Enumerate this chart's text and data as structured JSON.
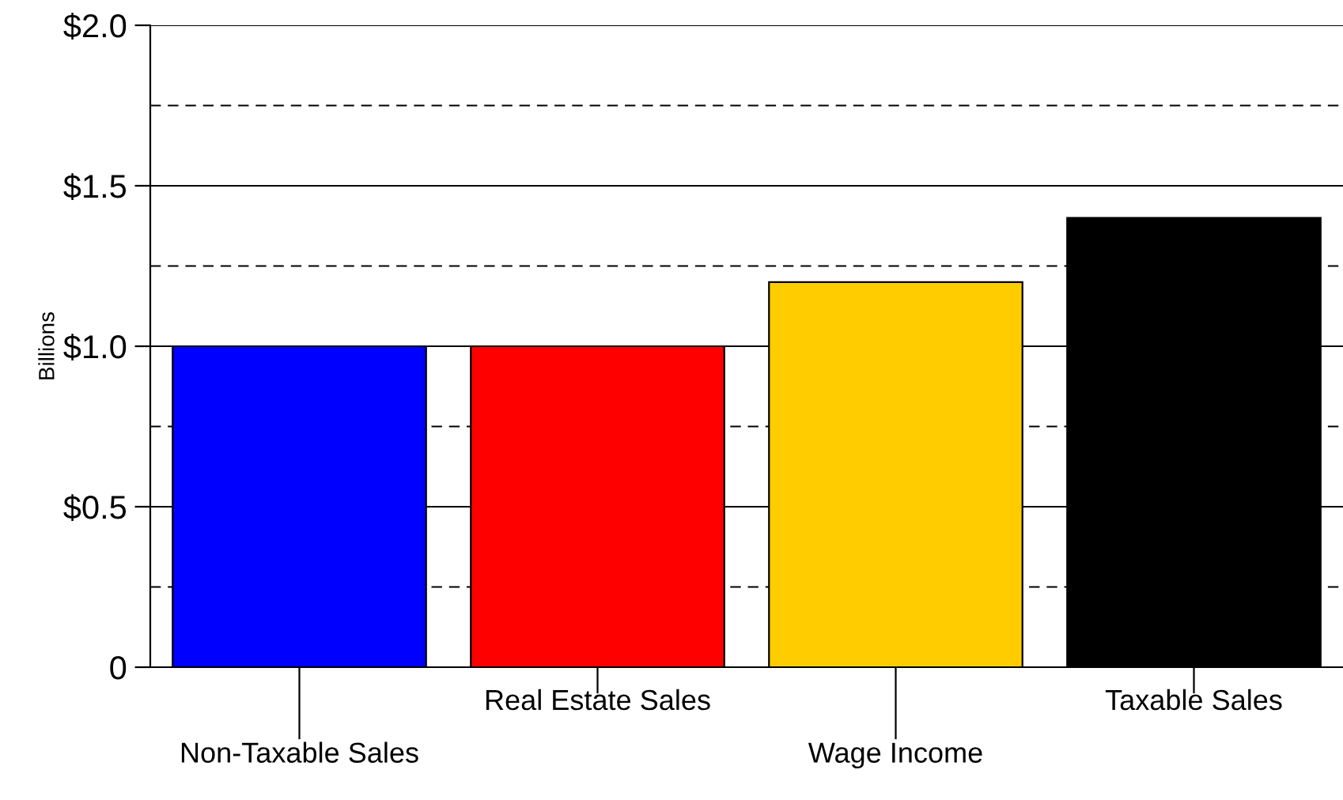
{
  "chart_data": {
    "type": "bar",
    "ylabel": "Billions",
    "categories": [
      "Non-Taxable Sales",
      "Real Estate Sales",
      "Wage Income",
      "Taxable Sales"
    ],
    "values": [
      1.0,
      1.0,
      1.2,
      1.4
    ],
    "colors": [
      "#0000ff",
      "#ff0000",
      "#ffcc00",
      "#000000"
    ],
    "ylim": [
      0,
      2.0
    ],
    "yticks": [
      {
        "value": 0,
        "label": "0"
      },
      {
        "value": 0.25,
        "label": null
      },
      {
        "value": 0.5,
        "label": "$0.5"
      },
      {
        "value": 0.75,
        "label": null
      },
      {
        "value": 1.0,
        "label": "$1.0"
      },
      {
        "value": 1.25,
        "label": null
      },
      {
        "value": 1.5,
        "label": "$1.5"
      },
      {
        "value": 1.75,
        "label": null
      },
      {
        "value": 2.0,
        "label": "$2.0"
      }
    ],
    "grid": "y"
  }
}
